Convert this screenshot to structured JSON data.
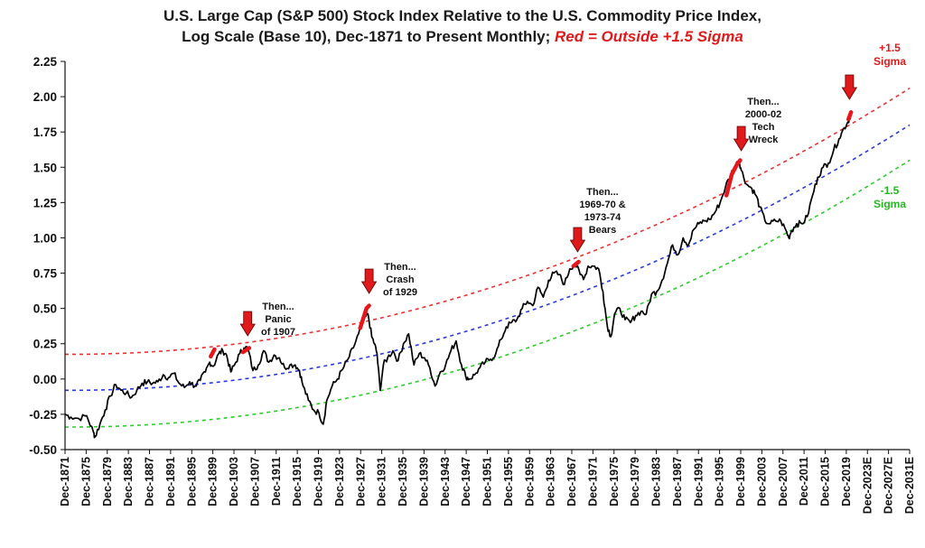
{
  "title": {
    "line1": "U.S. Large Cap (S&P 500) Stock Index Relative to the U.S. Commodity Price Index,",
    "line2_black": "Log Scale (Base 10), Dec-1871 to Present Monthly;",
    "line2_red": "Red = Outside +1.5 Sigma"
  },
  "colors": {
    "series": "#000000",
    "highlight": "#e8161b",
    "upper_band": "#ee3030",
    "trend": "#2a3ae0",
    "lower_band": "#2ecc2e",
    "arrow": "#e0191b"
  },
  "chart_data": {
    "type": "line",
    "y_scale": "log10 ratio",
    "ylim": [
      -0.5,
      2.25
    ],
    "yticks": [
      "2.25",
      "2.00",
      "1.75",
      "1.50",
      "1.25",
      "1.00",
      "0.75",
      "0.50",
      "0.25",
      "0.00",
      "-0.25",
      "-0.50"
    ],
    "xlim": [
      1871.9,
      2031.9
    ],
    "xticks": [
      "Dec-1871",
      "Dec-1875",
      "Dec-1879",
      "Dec-1883",
      "Dec-1887",
      "Dec-1891",
      "Dec-1895",
      "Dec-1899",
      "Dec-1903",
      "Dec-1907",
      "Dec-1911",
      "Dec-1915",
      "Dec-1919",
      "Dec-1923",
      "Dec-1927",
      "Dec-1931",
      "Dec-1935",
      "Dec-1939",
      "Dec-1943",
      "Dec-1947",
      "Dec-1951",
      "Dec-1955",
      "Dec-1959",
      "Dec-1963",
      "Dec-1967",
      "Dec-1971",
      "Dec-1975",
      "Dec-1979",
      "Dec-1983",
      "Dec-1987",
      "Dec-1991",
      "Dec-1995",
      "Dec-1999",
      "Dec-2003",
      "Dec-2007",
      "Dec-2011",
      "Dec-2015",
      "Dec-2019",
      "Dec-2023E",
      "Dec-2027E",
      "Dec-2031E"
    ],
    "series": [
      {
        "values": [
          [
            1871.9,
            -0.25
          ],
          [
            1873,
            -0.27
          ],
          [
            1874.5,
            -0.28
          ],
          [
            1876,
            -0.26
          ],
          [
            1877.3,
            -0.38
          ],
          [
            1877.6,
            -0.41
          ],
          [
            1878.5,
            -0.32
          ],
          [
            1879.5,
            -0.22
          ],
          [
            1880.5,
            -0.12
          ],
          [
            1881.5,
            -0.04
          ],
          [
            1882.5,
            -0.08
          ],
          [
            1883.5,
            -0.1
          ],
          [
            1884.5,
            -0.13
          ],
          [
            1885.5,
            -0.08
          ],
          [
            1886.5,
            -0.03
          ],
          [
            1887.5,
            -0.02
          ],
          [
            1888.5,
            -0.03
          ],
          [
            1889.5,
            -0.02
          ],
          [
            1890.5,
            0.03
          ],
          [
            1891.5,
            0.01
          ],
          [
            1892.5,
            0.04
          ],
          [
            1893.5,
            -0.03
          ],
          [
            1894.5,
            -0.06
          ],
          [
            1895.5,
            -0.02
          ],
          [
            1896.5,
            -0.05
          ],
          [
            1897.5,
            -0.01
          ],
          [
            1898.5,
            0.05
          ],
          [
            1899.3,
            0.12
          ],
          [
            1900,
            0.09
          ],
          [
            1901,
            0.18
          ],
          [
            1901.8,
            0.2
          ],
          [
            1902.5,
            0.17
          ],
          [
            1903.3,
            0.05
          ],
          [
            1904,
            0.1
          ],
          [
            1905,
            0.18
          ],
          [
            1905.8,
            0.22
          ],
          [
            1906.5,
            0.22
          ],
          [
            1907.5,
            0.06
          ],
          [
            1908.5,
            0.1
          ],
          [
            1909.5,
            0.2
          ],
          [
            1910.5,
            0.12
          ],
          [
            1911.5,
            0.17
          ],
          [
            1912.5,
            0.15
          ],
          [
            1913.5,
            0.08
          ],
          [
            1914.5,
            0.1
          ],
          [
            1915.5,
            0.1
          ],
          [
            1916.3,
            0.06
          ],
          [
            1917,
            -0.05
          ],
          [
            1918,
            -0.15
          ],
          [
            1919,
            -0.22
          ],
          [
            1920,
            -0.24
          ],
          [
            1920.8,
            -0.32
          ],
          [
            1921.5,
            -0.15
          ],
          [
            1922.5,
            -0.05
          ],
          [
            1923.5,
            0.0
          ],
          [
            1924.5,
            0.07
          ],
          [
            1925.5,
            0.14
          ],
          [
            1926.5,
            0.22
          ],
          [
            1927.5,
            0.32
          ],
          [
            1928.5,
            0.42
          ],
          [
            1929.3,
            0.46
          ],
          [
            1930,
            0.3
          ],
          [
            1930.5,
            0.25
          ],
          [
            1931,
            0.18
          ],
          [
            1931.6,
            -0.08
          ],
          [
            1932.2,
            0.1
          ],
          [
            1933,
            0.15
          ],
          [
            1934,
            0.2
          ],
          [
            1935,
            0.13
          ],
          [
            1936,
            0.25
          ],
          [
            1937,
            0.32
          ],
          [
            1938,
            0.1
          ],
          [
            1939,
            0.18
          ],
          [
            1940,
            0.15
          ],
          [
            1941,
            0.08
          ],
          [
            1942,
            -0.05
          ],
          [
            1943,
            0.05
          ],
          [
            1944,
            0.1
          ],
          [
            1945,
            0.2
          ],
          [
            1946,
            0.27
          ],
          [
            1947,
            0.1
          ],
          [
            1947.8,
            0.02
          ],
          [
            1948.5,
            0.0
          ],
          [
            1949.5,
            0.03
          ],
          [
            1950.5,
            0.08
          ],
          [
            1951.5,
            0.12
          ],
          [
            1952.5,
            0.14
          ],
          [
            1953.5,
            0.18
          ],
          [
            1954.5,
            0.28
          ],
          [
            1955.5,
            0.37
          ],
          [
            1956.5,
            0.4
          ],
          [
            1957.5,
            0.42
          ],
          [
            1958.5,
            0.5
          ],
          [
            1959.5,
            0.55
          ],
          [
            1960.5,
            0.52
          ],
          [
            1961.5,
            0.65
          ],
          [
            1962.5,
            0.58
          ],
          [
            1963.5,
            0.7
          ],
          [
            1964.5,
            0.75
          ],
          [
            1965.5,
            0.74
          ],
          [
            1966.5,
            0.67
          ],
          [
            1967.5,
            0.78
          ],
          [
            1968.5,
            0.82
          ],
          [
            1969.5,
            0.74
          ],
          [
            1970.3,
            0.72
          ],
          [
            1971,
            0.8
          ],
          [
            1972,
            0.8
          ],
          [
            1973,
            0.78
          ],
          [
            1973.8,
            0.62
          ],
          [
            1974.6,
            0.38
          ],
          [
            1975.3,
            0.3
          ],
          [
            1976,
            0.46
          ],
          [
            1977,
            0.5
          ],
          [
            1978,
            0.42
          ],
          [
            1979,
            0.4
          ],
          [
            1980,
            0.45
          ],
          [
            1981,
            0.48
          ],
          [
            1982,
            0.46
          ],
          [
            1983,
            0.6
          ],
          [
            1984,
            0.62
          ],
          [
            1985,
            0.7
          ],
          [
            1986,
            0.82
          ],
          [
            1987,
            0.95
          ],
          [
            1988,
            0.88
          ],
          [
            1989,
            1.0
          ],
          [
            1990,
            0.95
          ],
          [
            1991,
            1.06
          ],
          [
            1992,
            1.1
          ],
          [
            1993,
            1.12
          ],
          [
            1994,
            1.13
          ],
          [
            1995,
            1.18
          ],
          [
            1996,
            1.25
          ],
          [
            1997,
            1.36
          ],
          [
            1998,
            1.45
          ],
          [
            1999,
            1.52
          ],
          [
            1999.6,
            1.55
          ],
          [
            2000,
            1.48
          ],
          [
            2001,
            1.38
          ],
          [
            2002,
            1.35
          ],
          [
            2002.8,
            1.3
          ],
          [
            2003.5,
            1.22
          ],
          [
            2004.5,
            1.12
          ],
          [
            2005.5,
            1.1
          ],
          [
            2006.5,
            1.12
          ],
          [
            2007.5,
            1.12
          ],
          [
            2008.5,
            1.05
          ],
          [
            2009,
            1.0
          ],
          [
            2009.5,
            1.05
          ],
          [
            2010.5,
            1.1
          ],
          [
            2011.5,
            1.1
          ],
          [
            2012.5,
            1.15
          ],
          [
            2013.5,
            1.3
          ],
          [
            2014.5,
            1.43
          ],
          [
            2015.5,
            1.5
          ],
          [
            2016.5,
            1.53
          ],
          [
            2017.5,
            1.62
          ],
          [
            2018.5,
            1.7
          ],
          [
            2019.5,
            1.78
          ],
          [
            2020.2,
            1.82
          ],
          [
            2020.8,
            1.88
          ]
        ]
      }
    ],
    "highlight_segments": [
      [
        [
          1899.5,
          0.16
        ],
        [
          1900.2,
          0.21
        ]
      ],
      [
        [
          1905.6,
          0.19
        ],
        [
          1906.8,
          0.22
        ]
      ],
      [
        [
          1927.8,
          0.36
        ],
        [
          1929.0,
          0.5
        ],
        [
          1929.5,
          0.52
        ]
      ],
      [
        [
          1968.2,
          0.8
        ],
        [
          1969.2,
          0.83
        ]
      ],
      [
        [
          1997.2,
          1.3
        ],
        [
          1998.2,
          1.45
        ],
        [
          1999.2,
          1.52
        ],
        [
          1999.8,
          1.55
        ]
      ],
      [
        [
          2020.3,
          1.84
        ],
        [
          2020.8,
          1.89
        ]
      ]
    ],
    "bands": {
      "upper": {
        "vertex_year": 1873,
        "vertex_value": 0.175,
        "end_value": 2.06
      },
      "trend": {
        "vertex_year": 1873,
        "vertex_value": -0.08,
        "end_value": 1.8
      },
      "lower": {
        "vertex_year": 1873,
        "vertex_value": -0.34,
        "end_value": 1.55
      }
    },
    "band_labels": [
      {
        "key": "plus",
        "line1": "+1.5",
        "line2": "Sigma"
      },
      {
        "key": "minus",
        "line1": "-1.5",
        "line2": "Sigma"
      }
    ],
    "annotations": [
      {
        "key": "panic",
        "year": 1906.5,
        "lines": [
          "Then...",
          "Panic",
          "of 1907"
        ]
      },
      {
        "key": "crash",
        "year": 1929.5,
        "lines": [
          "Then...",
          "Crash",
          "of 1929"
        ]
      },
      {
        "key": "bears",
        "year": 1969,
        "lines": [
          "Then...",
          "1969-70 &",
          "1973-74",
          "Bears"
        ]
      },
      {
        "key": "tech",
        "year": 2000,
        "lines": [
          "Then...",
          "2000-02",
          "Tech",
          "Wreck"
        ]
      },
      {
        "key": "current",
        "year": 2020.5,
        "lines": []
      }
    ]
  }
}
